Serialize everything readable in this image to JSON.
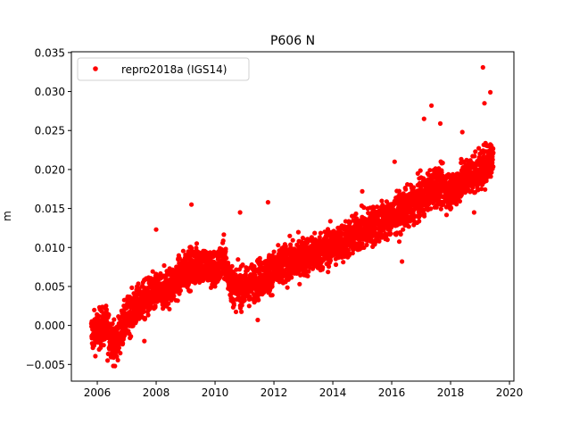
{
  "chart_data": {
    "type": "scatter",
    "title": "P606 N",
    "xlabel": "",
    "ylabel": "m",
    "xlim": [
      2005.12,
      2020.15
    ],
    "ylim": [
      -0.00714,
      0.0351
    ],
    "xticks": [
      2006,
      2008,
      2010,
      2012,
      2014,
      2016,
      2018,
      2020
    ],
    "xtick_labels": [
      "2006",
      "2008",
      "2010",
      "2012",
      "2014",
      "2016",
      "2018",
      "2020"
    ],
    "yticks": [
      -0.005,
      0.0,
      0.005,
      0.01,
      0.015,
      0.02,
      0.025,
      0.03,
      0.035
    ],
    "ytick_labels": [
      "−0.005",
      "0.000",
      "0.005",
      "0.010",
      "0.015",
      "0.020",
      "0.025",
      "0.030",
      "0.035"
    ],
    "grid": false,
    "legend": {
      "placement": "top-left",
      "entries": [
        "repro2018a (IGS14)"
      ]
    },
    "series": [
      {
        "name": "repro2018a (IGS14)",
        "color": "#ff0000",
        "marker": "circle",
        "x_range": [
          2005.8,
          2019.45
        ],
        "approx_point_count": 4000,
        "noise_spread_m": 0.0022,
        "trend": [
          [
            2005.8,
            -0.001
          ],
          [
            2006.3,
            0.0
          ],
          [
            2006.6,
            -0.0025
          ],
          [
            2007.0,
            0.001
          ],
          [
            2007.5,
            0.003
          ],
          [
            2008.0,
            0.0042
          ],
          [
            2008.5,
            0.005
          ],
          [
            2009.0,
            0.0072
          ],
          [
            2009.5,
            0.008
          ],
          [
            2010.0,
            0.007
          ],
          [
            2010.3,
            0.0085
          ],
          [
            2010.6,
            0.005
          ],
          [
            2011.0,
            0.0048
          ],
          [
            2011.5,
            0.006
          ],
          [
            2012.0,
            0.007
          ],
          [
            2012.5,
            0.008
          ],
          [
            2013.0,
            0.0088
          ],
          [
            2013.5,
            0.0093
          ],
          [
            2014.0,
            0.0102
          ],
          [
            2014.5,
            0.011
          ],
          [
            2015.0,
            0.0122
          ],
          [
            2015.5,
            0.013
          ],
          [
            2016.0,
            0.0138
          ],
          [
            2016.5,
            0.015
          ],
          [
            2017.0,
            0.0163
          ],
          [
            2017.5,
            0.018
          ],
          [
            2018.0,
            0.0172
          ],
          [
            2018.5,
            0.019
          ],
          [
            2019.0,
            0.0198
          ],
          [
            2019.45,
            0.0218
          ]
        ],
        "outliers": [
          [
            2019.1,
            0.0331
          ],
          [
            2019.35,
            0.0299
          ],
          [
            2019.15,
            0.0285
          ],
          [
            2017.35,
            0.0282
          ],
          [
            2017.65,
            0.0259
          ],
          [
            2017.1,
            0.0265
          ],
          [
            2018.4,
            0.0248
          ],
          [
            2011.45,
            0.0007
          ],
          [
            2008.0,
            0.0123
          ],
          [
            2009.2,
            0.0155
          ],
          [
            2016.35,
            0.0082
          ],
          [
            2006.35,
            -0.0045
          ],
          [
            2006.6,
            -0.0052
          ],
          [
            2007.6,
            -0.002
          ],
          [
            2011.8,
            0.0158
          ],
          [
            2010.85,
            0.0145
          ],
          [
            2015.0,
            0.0172
          ],
          [
            2016.1,
            0.021
          ],
          [
            2018.8,
            0.0145
          ]
        ]
      }
    ]
  }
}
